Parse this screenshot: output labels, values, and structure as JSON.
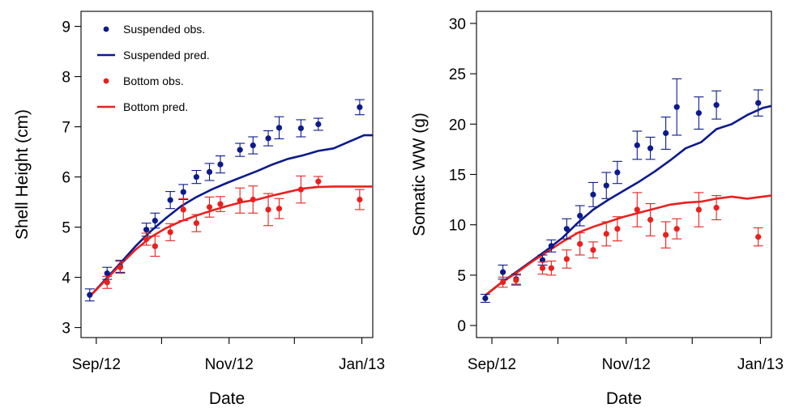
{
  "colors": {
    "suspended": "#0c1a8c",
    "bottom": "#e8211e",
    "axis": "#000000"
  },
  "legend": [
    {
      "label": "Suspended obs.",
      "kind": "point",
      "series": "suspended"
    },
    {
      "label": "Suspended pred.",
      "kind": "line",
      "series": "suspended"
    },
    {
      "label": "Bottom obs.",
      "kind": "point",
      "series": "bottom"
    },
    {
      "label": "Bottom pred.",
      "kind": "line",
      "series": "bottom"
    }
  ],
  "chart_data": [
    {
      "type": "scatter",
      "xlabel": "Date",
      "ylabel": "Shell Height (cm)",
      "xticks": [
        "Sep/12",
        "Nov/12",
        "Jan/13"
      ],
      "xlim": [
        "2012-08-25",
        "2013-01-06"
      ],
      "ylim": [
        2.8,
        9.3
      ],
      "yticks": [
        3,
        4,
        5,
        6,
        7,
        8,
        9
      ],
      "grid": false,
      "legend_position": "top-left",
      "series": [
        {
          "name": "Suspended obs.",
          "color": "suspended",
          "points": [
            {
              "x": "2012-08-29",
              "y": 3.65,
              "err": 0.12
            },
            {
              "x": "2012-09-06",
              "y": 4.08,
              "err": 0.12
            },
            {
              "x": "2012-09-12",
              "y": 4.22,
              "err": 0.12
            },
            {
              "x": "2012-09-24",
              "y": 4.95,
              "err": 0.13
            },
            {
              "x": "2012-09-28",
              "y": 5.13,
              "err": 0.15
            },
            {
              "x": "2012-10-05",
              "y": 5.54,
              "err": 0.17
            },
            {
              "x": "2012-10-11",
              "y": 5.7,
              "err": 0.15
            },
            {
              "x": "2012-10-17",
              "y": 6.0,
              "err": 0.13
            },
            {
              "x": "2012-10-23",
              "y": 6.1,
              "err": 0.17
            },
            {
              "x": "2012-10-28",
              "y": 6.25,
              "err": 0.17
            },
            {
              "x": "2012-11-06",
              "y": 6.54,
              "err": 0.13
            },
            {
              "x": "2012-11-12",
              "y": 6.63,
              "err": 0.17
            },
            {
              "x": "2012-11-19",
              "y": 6.77,
              "err": 0.15
            },
            {
              "x": "2012-11-24",
              "y": 6.98,
              "err": 0.22
            },
            {
              "x": "2012-12-04",
              "y": 6.97,
              "err": 0.17
            },
            {
              "x": "2012-12-12",
              "y": 7.05,
              "err": 0.12
            },
            {
              "x": "2012-12-31",
              "y": 7.39,
              "err": 0.15
            }
          ]
        },
        {
          "name": "Suspended pred.",
          "color": "suspended",
          "line": true,
          "points": [
            {
              "x": "2012-08-29",
              "y": 3.62
            },
            {
              "x": "2012-09-05",
              "y": 3.95
            },
            {
              "x": "2012-09-12",
              "y": 4.28
            },
            {
              "x": "2012-09-19",
              "y": 4.62
            },
            {
              "x": "2012-09-26",
              "y": 4.92
            },
            {
              "x": "2012-10-03",
              "y": 5.18
            },
            {
              "x": "2012-10-10",
              "y": 5.42
            },
            {
              "x": "2012-10-17",
              "y": 5.6
            },
            {
              "x": "2012-10-24",
              "y": 5.75
            },
            {
              "x": "2012-10-31",
              "y": 5.88
            },
            {
              "x": "2012-11-07",
              "y": 6.0
            },
            {
              "x": "2012-11-14",
              "y": 6.12
            },
            {
              "x": "2012-11-21",
              "y": 6.25
            },
            {
              "x": "2012-11-28",
              "y": 6.36
            },
            {
              "x": "2012-12-05",
              "y": 6.43
            },
            {
              "x": "2012-12-12",
              "y": 6.52
            },
            {
              "x": "2012-12-19",
              "y": 6.57
            },
            {
              "x": "2012-12-26",
              "y": 6.7
            },
            {
              "x": "2013-01-02",
              "y": 6.83
            },
            {
              "x": "2013-01-06",
              "y": 6.83
            }
          ]
        },
        {
          "name": "Bottom obs.",
          "color": "bottom",
          "points": [
            {
              "x": "2012-09-06",
              "y": 3.9,
              "err": 0.12
            },
            {
              "x": "2012-09-12",
              "y": 4.2,
              "err": 0.12
            },
            {
              "x": "2012-09-24",
              "y": 4.76,
              "err": 0.12
            },
            {
              "x": "2012-09-28",
              "y": 4.62,
              "err": 0.2
            },
            {
              "x": "2012-10-05",
              "y": 4.9,
              "err": 0.17
            },
            {
              "x": "2012-10-11",
              "y": 5.35,
              "err": 0.22
            },
            {
              "x": "2012-10-17",
              "y": 5.08,
              "err": 0.17
            },
            {
              "x": "2012-10-23",
              "y": 5.4,
              "err": 0.2
            },
            {
              "x": "2012-10-28",
              "y": 5.46,
              "err": 0.15
            },
            {
              "x": "2012-11-06",
              "y": 5.53,
              "err": 0.25
            },
            {
              "x": "2012-11-12",
              "y": 5.55,
              "err": 0.27
            },
            {
              "x": "2012-11-19",
              "y": 5.35,
              "err": 0.32
            },
            {
              "x": "2012-11-24",
              "y": 5.37,
              "err": 0.2
            },
            {
              "x": "2012-12-04",
              "y": 5.75,
              "err": 0.27
            },
            {
              "x": "2012-12-12",
              "y": 5.91,
              "err": 0.1
            },
            {
              "x": "2012-12-31",
              "y": 5.55,
              "err": 0.2
            }
          ]
        },
        {
          "name": "Bottom pred.",
          "color": "bottom",
          "line": true,
          "points": [
            {
              "x": "2012-08-29",
              "y": 3.62
            },
            {
              "x": "2012-09-05",
              "y": 3.93
            },
            {
              "x": "2012-09-12",
              "y": 4.25
            },
            {
              "x": "2012-09-19",
              "y": 4.55
            },
            {
              "x": "2012-09-26",
              "y": 4.8
            },
            {
              "x": "2012-10-03",
              "y": 4.98
            },
            {
              "x": "2012-10-10",
              "y": 5.12
            },
            {
              "x": "2012-10-17",
              "y": 5.23
            },
            {
              "x": "2012-10-24",
              "y": 5.33
            },
            {
              "x": "2012-10-31",
              "y": 5.42
            },
            {
              "x": "2012-11-07",
              "y": 5.5
            },
            {
              "x": "2012-11-14",
              "y": 5.55
            },
            {
              "x": "2012-11-21",
              "y": 5.63
            },
            {
              "x": "2012-11-28",
              "y": 5.7
            },
            {
              "x": "2012-12-05",
              "y": 5.77
            },
            {
              "x": "2012-12-12",
              "y": 5.8
            },
            {
              "x": "2012-12-19",
              "y": 5.81
            },
            {
              "x": "2012-12-26",
              "y": 5.81
            },
            {
              "x": "2013-01-02",
              "y": 5.81
            },
            {
              "x": "2013-01-06",
              "y": 5.81
            }
          ]
        }
      ]
    },
    {
      "type": "scatter",
      "xlabel": "Date",
      "ylabel": "Somatic WW (g)",
      "xticks": [
        "Sep/12",
        "Nov/12",
        "Jan/13"
      ],
      "xlim": [
        "2012-08-25",
        "2013-01-06"
      ],
      "ylim": [
        -1.2,
        31.2
      ],
      "yticks": [
        0,
        5,
        10,
        15,
        20,
        25,
        30
      ],
      "grid": false,
      "series": [
        {
          "name": "Suspended obs.",
          "color": "suspended",
          "points": [
            {
              "x": "2012-08-29",
              "y": 2.7,
              "err": 0.4
            },
            {
              "x": "2012-09-06",
              "y": 5.3,
              "err": 0.7
            },
            {
              "x": "2012-09-12",
              "y": 4.6,
              "err": 0.5
            },
            {
              "x": "2012-09-24",
              "y": 6.5,
              "err": 0.5
            },
            {
              "x": "2012-09-28",
              "y": 7.9,
              "err": 0.6
            },
            {
              "x": "2012-10-05",
              "y": 9.6,
              "err": 1.0
            },
            {
              "x": "2012-10-11",
              "y": 10.9,
              "err": 1.0
            },
            {
              "x": "2012-10-17",
              "y": 13.0,
              "err": 1.2
            },
            {
              "x": "2012-10-23",
              "y": 13.9,
              "err": 1.3
            },
            {
              "x": "2012-10-28",
              "y": 15.2,
              "err": 1.1
            },
            {
              "x": "2012-11-06",
              "y": 17.9,
              "err": 1.4
            },
            {
              "x": "2012-11-12",
              "y": 17.6,
              "err": 1.1
            },
            {
              "x": "2012-11-19",
              "y": 19.1,
              "err": 1.6
            },
            {
              "x": "2012-11-24",
              "y": 21.7,
              "err": 2.8
            },
            {
              "x": "2012-12-04",
              "y": 21.1,
              "err": 1.6
            },
            {
              "x": "2012-12-12",
              "y": 21.9,
              "err": 1.4
            },
            {
              "x": "2012-12-31",
              "y": 22.1,
              "err": 1.3
            }
          ]
        },
        {
          "name": "Suspended pred.",
          "color": "suspended",
          "line": true,
          "points": [
            {
              "x": "2012-08-29",
              "y": 3.0
            },
            {
              "x": "2012-09-05",
              "y": 4.2
            },
            {
              "x": "2012-09-12",
              "y": 5.3
            },
            {
              "x": "2012-09-19",
              "y": 6.4
            },
            {
              "x": "2012-09-26",
              "y": 7.5
            },
            {
              "x": "2012-10-03",
              "y": 8.7
            },
            {
              "x": "2012-10-10",
              "y": 10.2
            },
            {
              "x": "2012-10-17",
              "y": 11.5
            },
            {
              "x": "2012-10-24",
              "y": 12.5
            },
            {
              "x": "2012-10-31",
              "y": 13.4
            },
            {
              "x": "2012-11-07",
              "y": 14.3
            },
            {
              "x": "2012-11-14",
              "y": 15.3
            },
            {
              "x": "2012-11-21",
              "y": 16.4
            },
            {
              "x": "2012-11-28",
              "y": 17.6
            },
            {
              "x": "2012-12-05",
              "y": 18.2
            },
            {
              "x": "2012-12-12",
              "y": 19.5
            },
            {
              "x": "2012-12-19",
              "y": 20.0
            },
            {
              "x": "2012-12-26",
              "y": 20.9
            },
            {
              "x": "2013-01-02",
              "y": 21.6
            },
            {
              "x": "2013-01-06",
              "y": 21.8
            }
          ]
        },
        {
          "name": "Bottom obs.",
          "color": "bottom",
          "points": [
            {
              "x": "2012-09-06",
              "y": 4.3,
              "err": 0.5
            },
            {
              "x": "2012-09-12",
              "y": 4.5,
              "err": 0.5
            },
            {
              "x": "2012-09-24",
              "y": 5.7,
              "err": 0.6
            },
            {
              "x": "2012-09-28",
              "y": 5.7,
              "err": 0.7
            },
            {
              "x": "2012-10-05",
              "y": 6.6,
              "err": 0.9
            },
            {
              "x": "2012-10-11",
              "y": 8.1,
              "err": 1.1
            },
            {
              "x": "2012-10-17",
              "y": 7.5,
              "err": 0.8
            },
            {
              "x": "2012-10-23",
              "y": 9.1,
              "err": 1.2
            },
            {
              "x": "2012-10-28",
              "y": 9.6,
              "err": 1.2
            },
            {
              "x": "2012-11-06",
              "y": 11.5,
              "err": 1.7
            },
            {
              "x": "2012-11-12",
              "y": 10.5,
              "err": 1.6
            },
            {
              "x": "2012-11-19",
              "y": 9.0,
              "err": 1.3
            },
            {
              "x": "2012-11-24",
              "y": 9.6,
              "err": 1.0
            },
            {
              "x": "2012-12-04",
              "y": 11.5,
              "err": 1.7
            },
            {
              "x": "2012-12-12",
              "y": 11.7,
              "err": 1.2
            },
            {
              "x": "2012-12-31",
              "y": 8.8,
              "err": 0.9
            }
          ]
        },
        {
          "name": "Bottom pred.",
          "color": "bottom",
          "line": true,
          "points": [
            {
              "x": "2012-08-29",
              "y": 3.0
            },
            {
              "x": "2012-09-05",
              "y": 4.2
            },
            {
              "x": "2012-09-12",
              "y": 5.2
            },
            {
              "x": "2012-09-19",
              "y": 6.3
            },
            {
              "x": "2012-09-26",
              "y": 7.3
            },
            {
              "x": "2012-10-03",
              "y": 8.3
            },
            {
              "x": "2012-10-10",
              "y": 9.2
            },
            {
              "x": "2012-10-17",
              "y": 9.8
            },
            {
              "x": "2012-10-24",
              "y": 10.3
            },
            {
              "x": "2012-10-31",
              "y": 10.8
            },
            {
              "x": "2012-11-07",
              "y": 11.2
            },
            {
              "x": "2012-11-14",
              "y": 11.6
            },
            {
              "x": "2012-11-21",
              "y": 12.0
            },
            {
              "x": "2012-11-28",
              "y": 12.2
            },
            {
              "x": "2012-12-05",
              "y": 12.3
            },
            {
              "x": "2012-12-12",
              "y": 12.6
            },
            {
              "x": "2012-12-19",
              "y": 12.8
            },
            {
              "x": "2012-12-26",
              "y": 12.6
            },
            {
              "x": "2013-01-02",
              "y": 12.8
            },
            {
              "x": "2013-01-06",
              "y": 12.9
            }
          ]
        }
      ]
    }
  ]
}
